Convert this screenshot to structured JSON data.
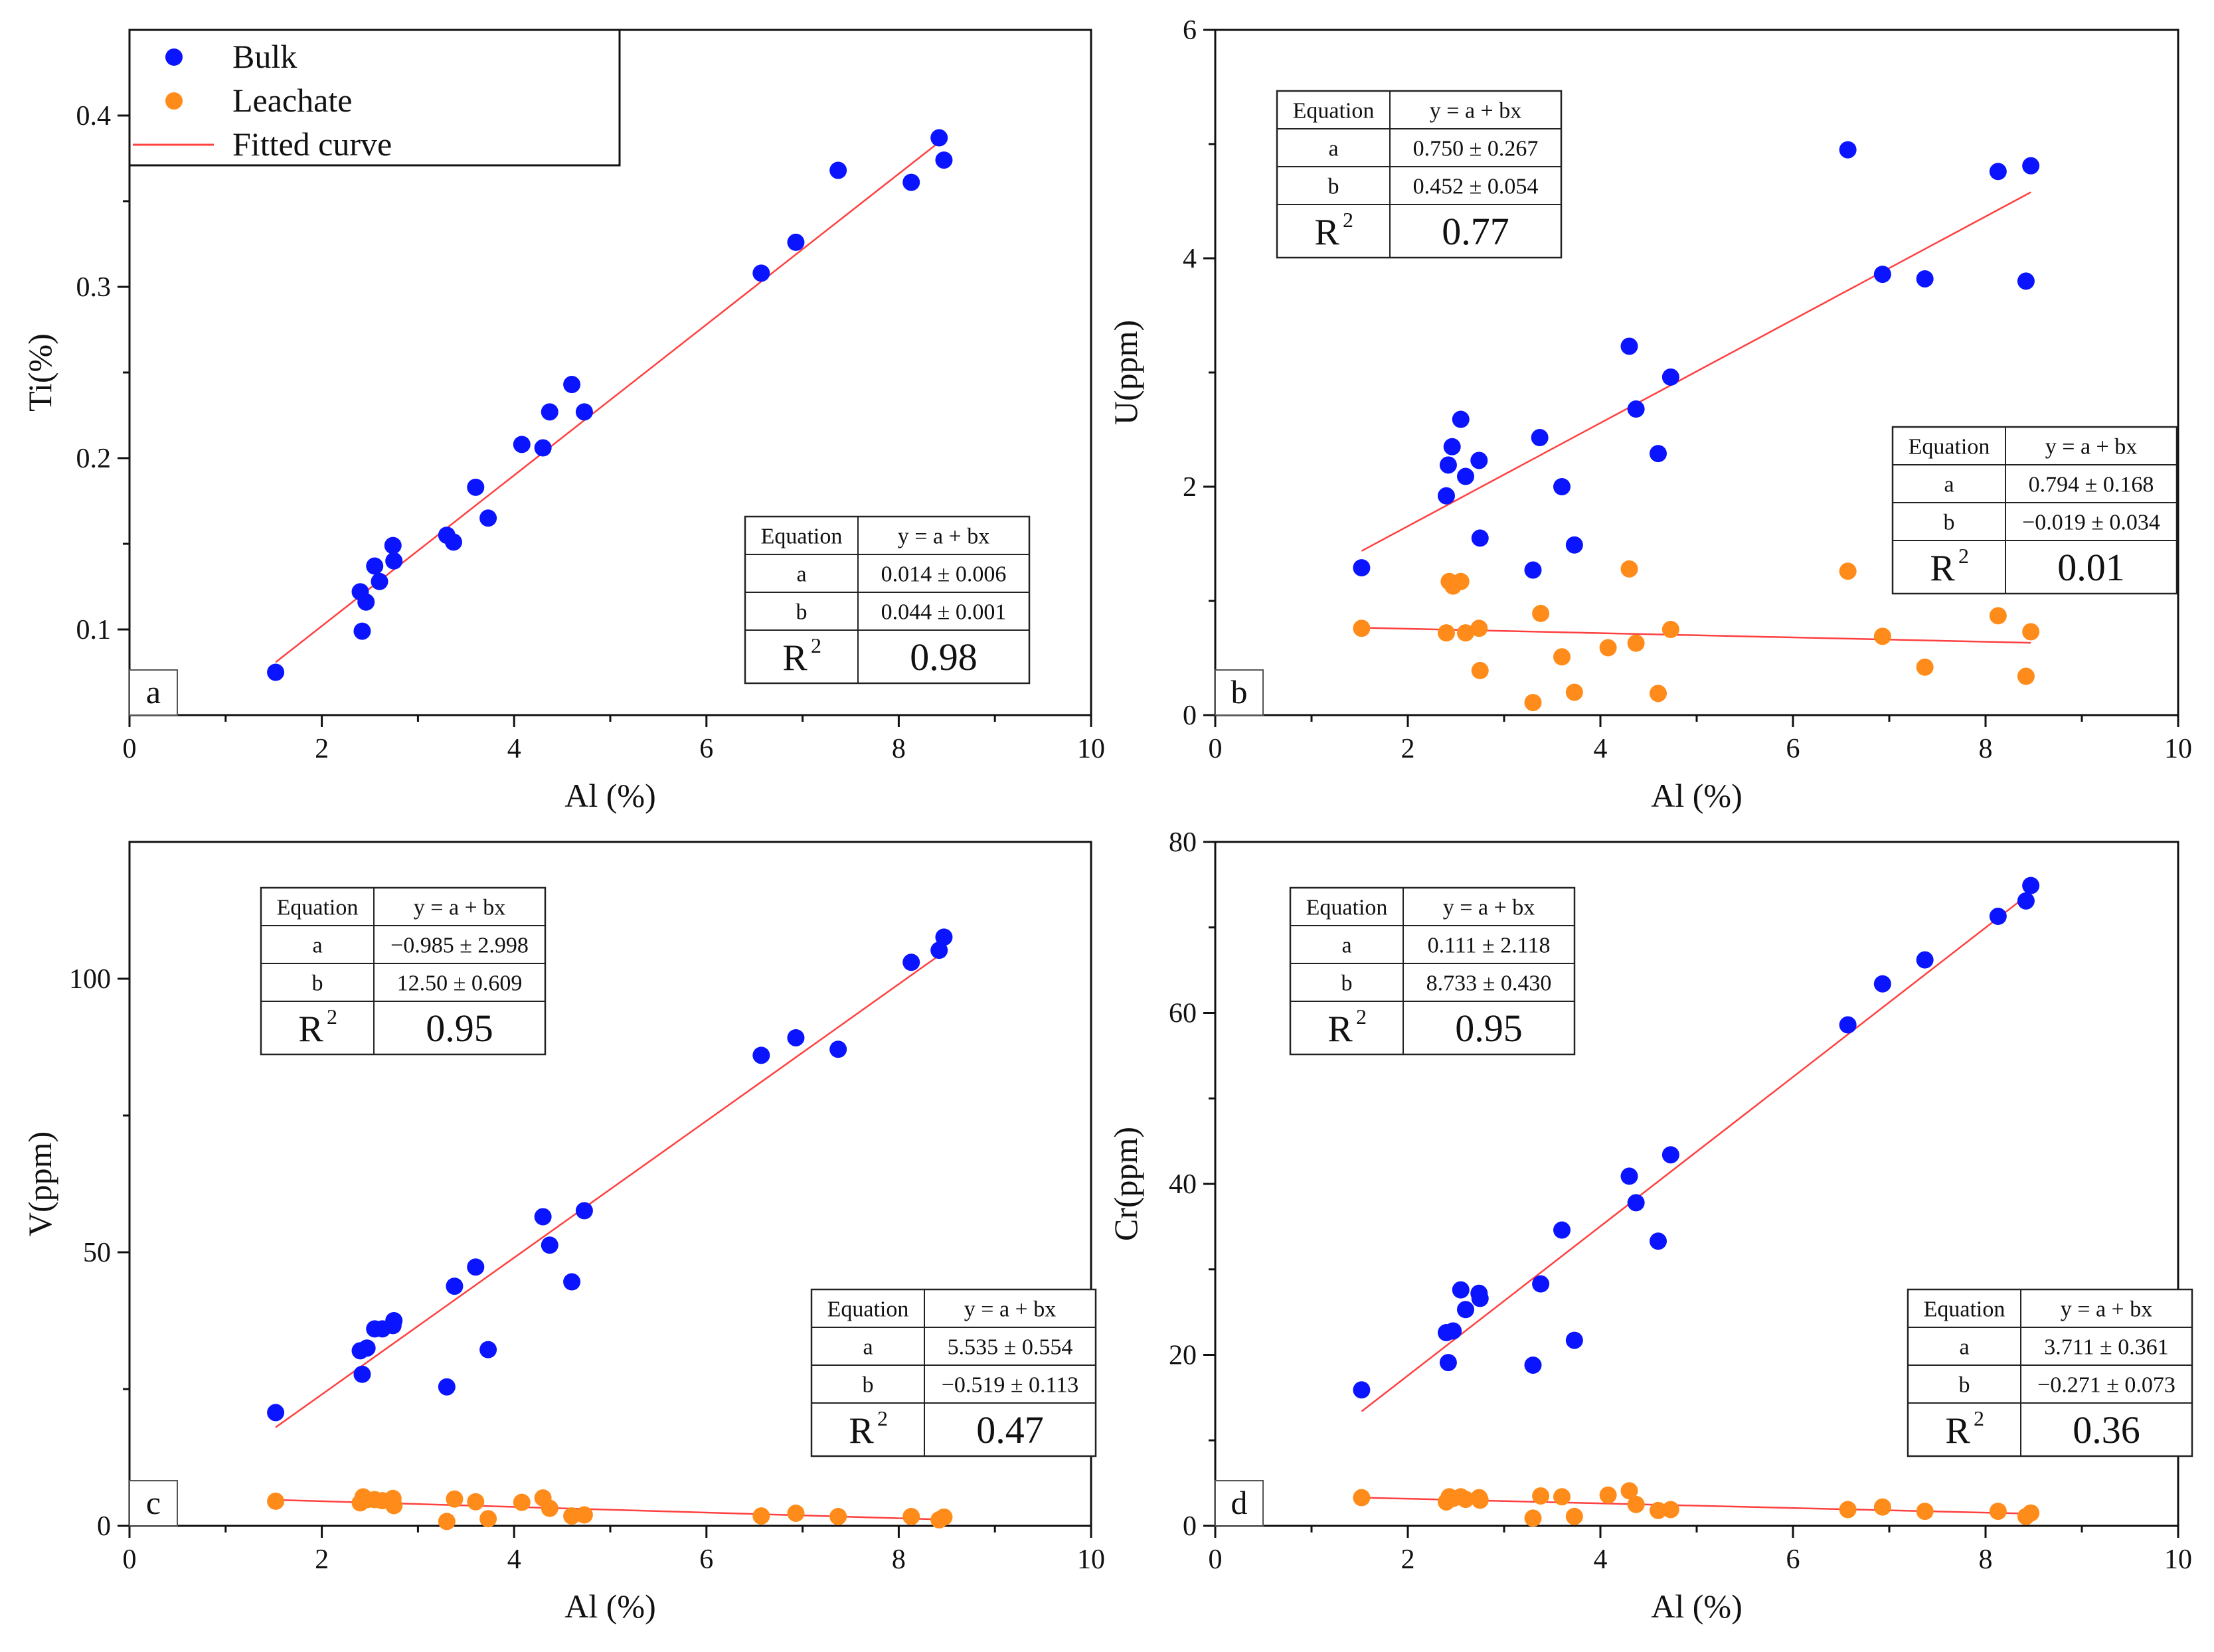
{
  "colors": {
    "bulk": "#0a14ff",
    "leachate": "#ff8c1a",
    "fit": "#ff4040",
    "axis": "#111111"
  },
  "legend": {
    "items": [
      {
        "label": "Bulk",
        "kind": "marker",
        "color_key": "bulk"
      },
      {
        "label": "Leachate",
        "kind": "marker",
        "color_key": "leachate"
      },
      {
        "label": "Fitted curve",
        "kind": "line",
        "color_key": "fit"
      }
    ]
  },
  "chart_data": [
    {
      "type": "scatter",
      "panel_label": "a",
      "xlabel": "Al (%)",
      "ylabel": "Ti(%)",
      "xlim": [
        0,
        10
      ],
      "ylim": [
        0.05,
        0.45
      ],
      "xticks": [
        0,
        2,
        4,
        6,
        8,
        10
      ],
      "yticks": [
        0.1,
        0.2,
        0.3,
        0.4
      ],
      "series": [
        {
          "name": "Bulk",
          "color_key": "bulk",
          "x": [
            1.52,
            2.4,
            2.42,
            2.46,
            2.55,
            2.6,
            2.74,
            2.75,
            3.3,
            3.37,
            3.6,
            3.73,
            4.08,
            4.3,
            4.37,
            4.6,
            4.73,
            6.57,
            6.93,
            7.37,
            8.13,
            8.42,
            8.47
          ],
          "y": [
            0.075,
            0.122,
            0.099,
            0.116,
            0.137,
            0.128,
            0.149,
            0.14,
            0.155,
            0.151,
            0.183,
            0.165,
            0.208,
            0.206,
            0.227,
            0.243,
            0.227,
            0.308,
            0.326,
            0.368,
            0.361,
            0.387,
            0.374
          ]
        }
      ],
      "fits": [
        {
          "series": "Bulk",
          "color_key": "fit",
          "a": 0.014,
          "b": 0.044,
          "x_range": [
            1.52,
            8.47
          ]
        }
      ],
      "tables": [
        {
          "color_key": "bulk",
          "position": "bottom-right",
          "rows": [
            [
              "Equation",
              "y = a + bx"
            ],
            [
              "a",
              "0.014 ± 0.006"
            ],
            [
              "b",
              "0.044 ± 0.001"
            ]
          ],
          "r2_label": "R",
          "r2_sup": "2",
          "r2_value": "0.98"
        }
      ]
    },
    {
      "type": "scatter",
      "panel_label": "b",
      "xlabel": "Al (%)",
      "ylabel": "U(ppm)",
      "xlim": [
        0,
        10
      ],
      "ylim": [
        0,
        6
      ],
      "xticks": [
        0,
        2,
        4,
        6,
        8,
        10
      ],
      "yticks": [
        0,
        2,
        4,
        6
      ],
      "series": [
        {
          "name": "Bulk",
          "color_key": "bulk",
          "x": [
            1.52,
            2.4,
            2.42,
            2.46,
            2.55,
            2.6,
            2.74,
            2.75,
            3.3,
            3.37,
            3.6,
            3.73,
            4.3,
            4.37,
            4.6,
            4.73,
            6.57,
            6.93,
            7.37,
            8.13,
            8.42,
            8.47
          ],
          "y": [
            1.29,
            1.92,
            2.19,
            2.35,
            2.59,
            2.09,
            2.23,
            1.55,
            1.27,
            2.43,
            2.0,
            1.49,
            3.23,
            2.68,
            2.29,
            2.96,
            4.95,
            3.86,
            3.82,
            4.76,
            3.8,
            4.81
          ]
        },
        {
          "name": "Leachate",
          "color_key": "leachate",
          "x": [
            1.52,
            2.4,
            2.43,
            2.47,
            2.55,
            2.6,
            2.74,
            2.75,
            3.3,
            3.38,
            3.6,
            3.73,
            4.08,
            4.3,
            4.37,
            4.6,
            4.73,
            6.57,
            6.93,
            7.37,
            8.13,
            8.42,
            8.47
          ],
          "y": [
            0.76,
            0.72,
            1.17,
            1.13,
            1.17,
            0.72,
            0.76,
            0.39,
            0.11,
            0.89,
            0.51,
            0.2,
            0.59,
            1.28,
            0.63,
            0.19,
            0.75,
            1.26,
            0.69,
            0.42,
            0.87,
            0.34,
            0.73
          ]
        }
      ],
      "fits": [
        {
          "series": "Bulk",
          "color_key": "fit",
          "a": 0.75,
          "b": 0.452,
          "x_range": [
            1.52,
            8.47
          ]
        },
        {
          "series": "Leachate",
          "color_key": "fit",
          "a": 0.794,
          "b": -0.019,
          "x_range": [
            1.52,
            8.47
          ]
        }
      ],
      "tables": [
        {
          "color_key": "bulk",
          "position": "top-left",
          "rows": [
            [
              "Equation",
              "y = a + bx"
            ],
            [
              "a",
              "0.750 ± 0.267"
            ],
            [
              "b",
              "0.452 ± 0.054"
            ]
          ],
          "r2_label": "R",
          "r2_sup": "2",
          "r2_value": "0.77"
        },
        {
          "color_key": "leachate",
          "position": "middle-right",
          "rows": [
            [
              "Equation",
              "y = a + bx"
            ],
            [
              "a",
              "0.794 ± 0.168"
            ],
            [
              "b",
              "−0.019 ± 0.034"
            ]
          ],
          "r2_label": "R",
          "r2_sup": "2",
          "r2_value": "0.01"
        }
      ]
    },
    {
      "type": "scatter",
      "panel_label": "c",
      "xlabel": "Al (%)",
      "ylabel": "V(ppm)",
      "xlim": [
        0,
        10
      ],
      "ylim": [
        0,
        125
      ],
      "xticks": [
        0,
        2,
        4,
        6,
        8,
        10
      ],
      "yticks": [
        0,
        50,
        100
      ],
      "series": [
        {
          "name": "Bulk",
          "color_key": "bulk",
          "x": [
            1.52,
            2.4,
            2.42,
            2.47,
            2.55,
            2.63,
            2.74,
            2.75,
            3.3,
            3.38,
            3.6,
            3.73,
            4.3,
            4.37,
            4.6,
            4.73,
            6.57,
            6.93,
            7.37,
            8.13,
            8.42,
            8.47
          ],
          "y": [
            20.7,
            32.0,
            27.7,
            32.5,
            36.0,
            36.0,
            36.6,
            37.5,
            25.4,
            43.8,
            47.3,
            32.2,
            56.5,
            51.3,
            44.6,
            57.6,
            86.0,
            89.2,
            87.1,
            103.0,
            105.2,
            107.6
          ]
        },
        {
          "name": "Leachate",
          "color_key": "leachate",
          "x": [
            1.52,
            2.4,
            2.43,
            2.47,
            2.55,
            2.63,
            2.74,
            2.75,
            3.3,
            3.38,
            3.6,
            3.73,
            4.08,
            4.3,
            4.37,
            4.6,
            4.73,
            6.57,
            6.93,
            7.37,
            8.13,
            8.42,
            8.47
          ],
          "y": [
            4.5,
            4.2,
            5.3,
            4.8,
            4.8,
            4.6,
            5.0,
            3.7,
            0.8,
            4.9,
            4.4,
            1.3,
            4.3,
            5.1,
            3.2,
            1.8,
            2.0,
            1.8,
            2.3,
            1.7,
            1.7,
            1.1,
            1.6
          ]
        }
      ],
      "fits": [
        {
          "series": "Bulk",
          "color_key": "fit",
          "a": -0.985,
          "b": 12.5,
          "x_range": [
            1.52,
            8.47
          ]
        },
        {
          "series": "Leachate",
          "color_key": "fit",
          "a": 5.535,
          "b": -0.519,
          "x_range": [
            1.52,
            8.47
          ]
        }
      ],
      "tables": [
        {
          "color_key": "bulk",
          "position": "top-left",
          "rows": [
            [
              "Equation",
              "y = a + bx"
            ],
            [
              "a",
              "−0.985 ± 2.998"
            ],
            [
              "b",
              "12.50 ± 0.609"
            ]
          ],
          "r2_label": "R",
          "r2_sup": "2",
          "r2_value": "0.95"
        },
        {
          "color_key": "leachate",
          "position": "bottom-right",
          "rows": [
            [
              "Equation",
              "y = a + bx"
            ],
            [
              "a",
              "5.535 ± 0.554"
            ],
            [
              "b",
              "−0.519 ± 0.113"
            ]
          ],
          "r2_label": "R",
          "r2_sup": "2",
          "r2_value": "0.47"
        }
      ]
    },
    {
      "type": "scatter",
      "panel_label": "d",
      "xlabel": "Al (%)",
      "ylabel": "Cr(ppm)",
      "xlim": [
        0,
        10
      ],
      "ylim": [
        0,
        80
      ],
      "xticks": [
        0,
        2,
        4,
        6,
        8,
        10
      ],
      "yticks": [
        0,
        20,
        40,
        60,
        80
      ],
      "series": [
        {
          "name": "Bulk",
          "color_key": "bulk",
          "x": [
            1.52,
            2.4,
            2.42,
            2.47,
            2.55,
            2.6,
            2.74,
            2.75,
            3.3,
            3.38,
            3.6,
            3.73,
            4.3,
            4.37,
            4.6,
            4.73,
            6.57,
            6.93,
            7.37,
            8.13,
            8.42,
            8.47
          ],
          "y": [
            15.9,
            22.6,
            19.1,
            22.8,
            27.6,
            25.3,
            27.2,
            26.6,
            18.8,
            28.3,
            34.6,
            21.7,
            40.9,
            37.8,
            33.3,
            43.4,
            58.6,
            63.4,
            66.2,
            71.3,
            73.1,
            74.9
          ]
        },
        {
          "name": "Leachate",
          "color_key": "leachate",
          "x": [
            1.52,
            2.4,
            2.43,
            2.47,
            2.55,
            2.6,
            2.74,
            2.75,
            3.3,
            3.38,
            3.6,
            3.73,
            4.08,
            4.3,
            4.37,
            4.6,
            4.73,
            6.57,
            6.93,
            7.37,
            8.13,
            8.42,
            8.47
          ],
          "y": [
            3.3,
            2.8,
            3.4,
            3.2,
            3.4,
            3.1,
            3.3,
            3.0,
            0.9,
            3.5,
            3.4,
            1.1,
            3.6,
            4.1,
            2.5,
            1.8,
            1.9,
            1.9,
            2.2,
            1.7,
            1.7,
            1.1,
            1.5
          ]
        }
      ],
      "fits": [
        {
          "series": "Bulk",
          "color_key": "fit",
          "a": 0.111,
          "b": 8.733,
          "x_range": [
            1.52,
            8.47
          ]
        },
        {
          "series": "Leachate",
          "color_key": "fit",
          "a": 3.711,
          "b": -0.271,
          "x_range": [
            1.52,
            8.47
          ]
        }
      ],
      "tables": [
        {
          "color_key": "bulk",
          "position": "top-left",
          "rows": [
            [
              "Equation",
              "y = a + bx"
            ],
            [
              "a",
              "0.111 ± 2.118"
            ],
            [
              "b",
              "8.733 ± 0.430"
            ]
          ],
          "r2_label": "R",
          "r2_sup": "2",
          "r2_value": "0.95"
        },
        {
          "color_key": "leachate",
          "position": "bottom-right",
          "rows": [
            [
              "Equation",
              "y = a + bx"
            ],
            [
              "a",
              "3.711 ± 0.361"
            ],
            [
              "b",
              "−0.271 ± 0.073"
            ]
          ],
          "r2_label": "R",
          "r2_sup": "2",
          "r2_value": "0.36"
        }
      ]
    }
  ]
}
